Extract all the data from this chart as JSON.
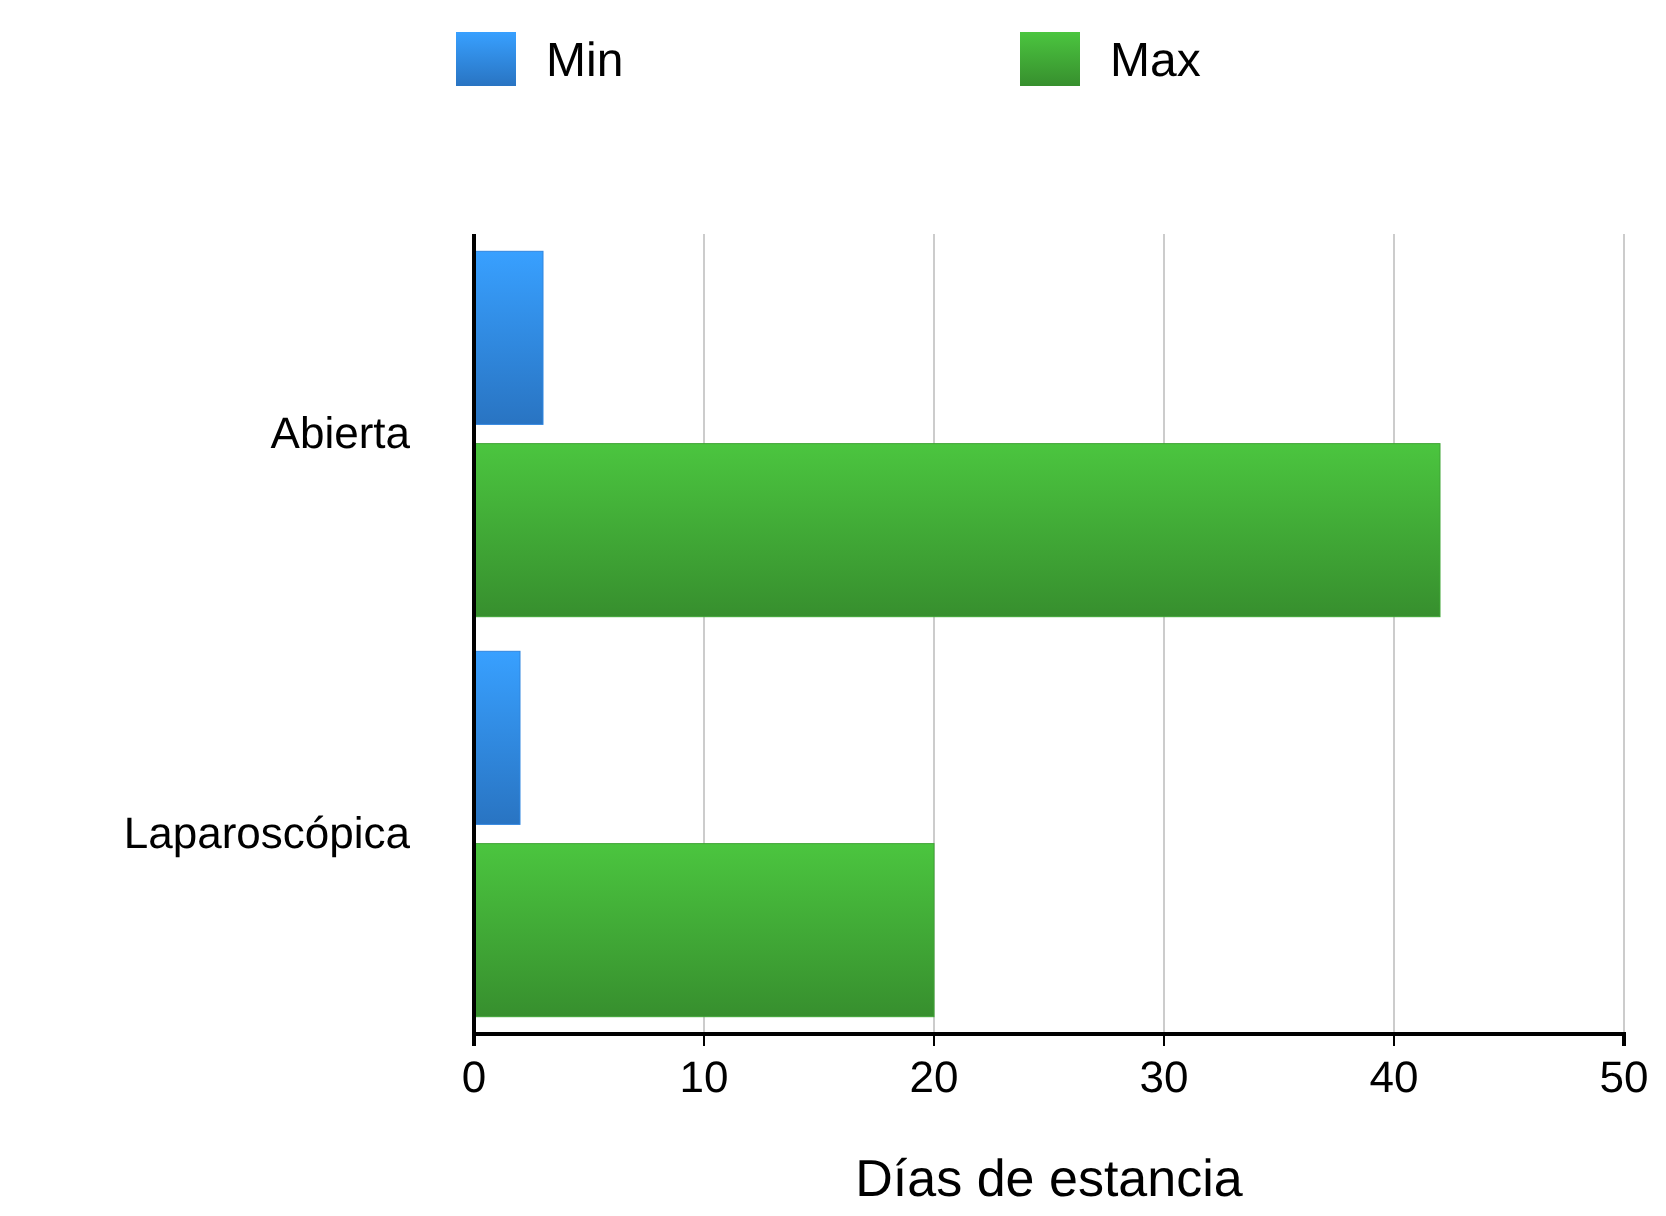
{
  "chart_data": {
    "type": "bar",
    "orientation": "horizontal",
    "xlabel": "Días de estancia",
    "categories": [
      "Abierta",
      "Laparoscópica"
    ],
    "series": [
      {
        "name": "Min",
        "color": "#2f86e0",
        "values": [
          3,
          2
        ]
      },
      {
        "name": "Max",
        "color": "#3fa535",
        "values": [
          42,
          20
        ]
      }
    ],
    "xlim": [
      0,
      50
    ],
    "xticks": [
      0,
      10,
      20,
      30,
      40,
      50
    ],
    "grid": "x",
    "legend": "top"
  }
}
